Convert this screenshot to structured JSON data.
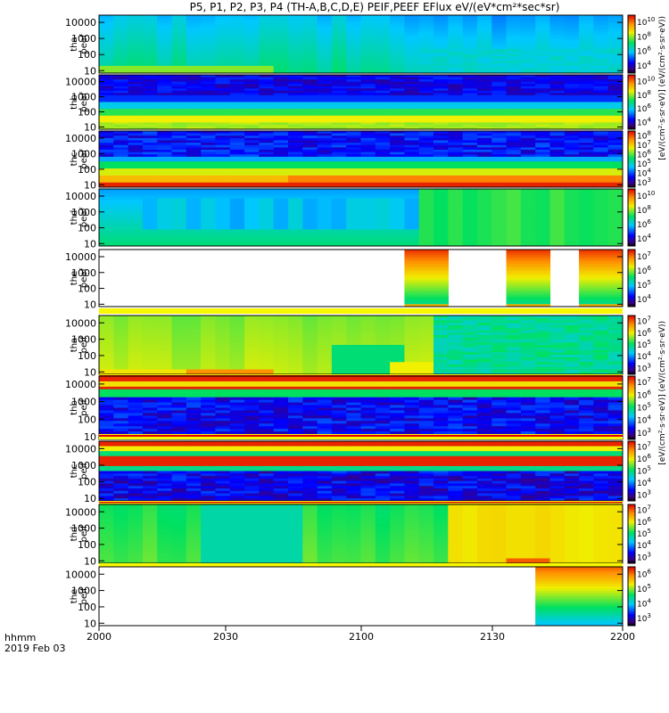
{
  "chart_data": {
    "type": "heatmap",
    "title": "P5, P1, P2, P3, P4 (TH-A,B,C,D,E) PEIF,PEEF EFlux eV/(eV*cm²*sec*sr)",
    "colorbar_label_ee": "[eV/(cm²·s·sr·eV)] (eV/(cm²·s·sr·eV))",
    "colorbar_label_ei": "[eV/(cm²·s·sr·eV)] (eV/(cm²·s·sr·eV))",
    "x_axis": {
      "ticks": [
        "2000",
        "2030",
        "2100",
        "2130",
        "2200"
      ],
      "footer_label": "hhmm",
      "date": "2019 Feb 03"
    },
    "y_ticks": [
      "10",
      "100",
      "1000",
      "10000"
    ],
    "panels": [
      {
        "line1": "tha",
        "line2": "peef",
        "cb_ticks": [
          [
            "10",
            "4"
          ],
          [
            "10",
            "6"
          ],
          [
            "10",
            "8"
          ],
          [
            "10",
            "10"
          ]
        ]
      },
      {
        "line1": "thb",
        "line2": "peef",
        "cb_ticks": [
          [
            "10",
            "4"
          ],
          [
            "10",
            "6"
          ],
          [
            "10",
            "8"
          ],
          [
            "10",
            "10"
          ]
        ]
      },
      {
        "line1": "thc",
        "line2": "peef",
        "cb_ticks": [
          [
            "10",
            "3"
          ],
          [
            "10",
            "4"
          ],
          [
            "10",
            "5"
          ],
          [
            "10",
            "6"
          ],
          [
            "10",
            "7"
          ],
          [
            "10",
            "8"
          ]
        ]
      },
      {
        "line1": "thd",
        "line2": "peef",
        "cb_ticks": [
          [
            "10",
            "4"
          ],
          [
            "10",
            "6"
          ],
          [
            "10",
            "8"
          ],
          [
            "10",
            "10"
          ]
        ]
      },
      {
        "line1": "the",
        "line2": "peef",
        "cb_ticks": [
          [
            "10",
            "4"
          ],
          [
            "10",
            "5"
          ],
          [
            "10",
            "6"
          ],
          [
            "10",
            "7"
          ]
        ]
      },
      {
        "line1": "tha",
        "line2": "peif",
        "cb_ticks": [
          [
            "10",
            "3"
          ],
          [
            "10",
            "4"
          ],
          [
            "10",
            "5"
          ],
          [
            "10",
            "6"
          ],
          [
            "10",
            "7"
          ]
        ]
      },
      {
        "line1": "thb",
        "line2": "peif",
        "cb_ticks": [
          [
            "10",
            "3"
          ],
          [
            "10",
            "4"
          ],
          [
            "10",
            "5"
          ],
          [
            "10",
            "6"
          ],
          [
            "10",
            "7"
          ]
        ]
      },
      {
        "line1": "thc",
        "line2": "peif",
        "cb_ticks": [
          [
            "10",
            "3"
          ],
          [
            "10",
            "4"
          ],
          [
            "10",
            "5"
          ],
          [
            "10",
            "6"
          ],
          [
            "10",
            "7"
          ]
        ]
      },
      {
        "line1": "thd",
        "line2": "peif",
        "cb_ticks": [
          [
            "10",
            "3"
          ],
          [
            "10",
            "4"
          ],
          [
            "10",
            "5"
          ],
          [
            "10",
            "6"
          ],
          [
            "10",
            "7"
          ]
        ]
      },
      {
        "line1": "the",
        "line2": "peif",
        "cb_ticks": [
          [
            "10",
            "3"
          ],
          [
            "10",
            "4"
          ],
          [
            "10",
            "5"
          ],
          [
            "10",
            "6"
          ]
        ]
      }
    ]
  }
}
